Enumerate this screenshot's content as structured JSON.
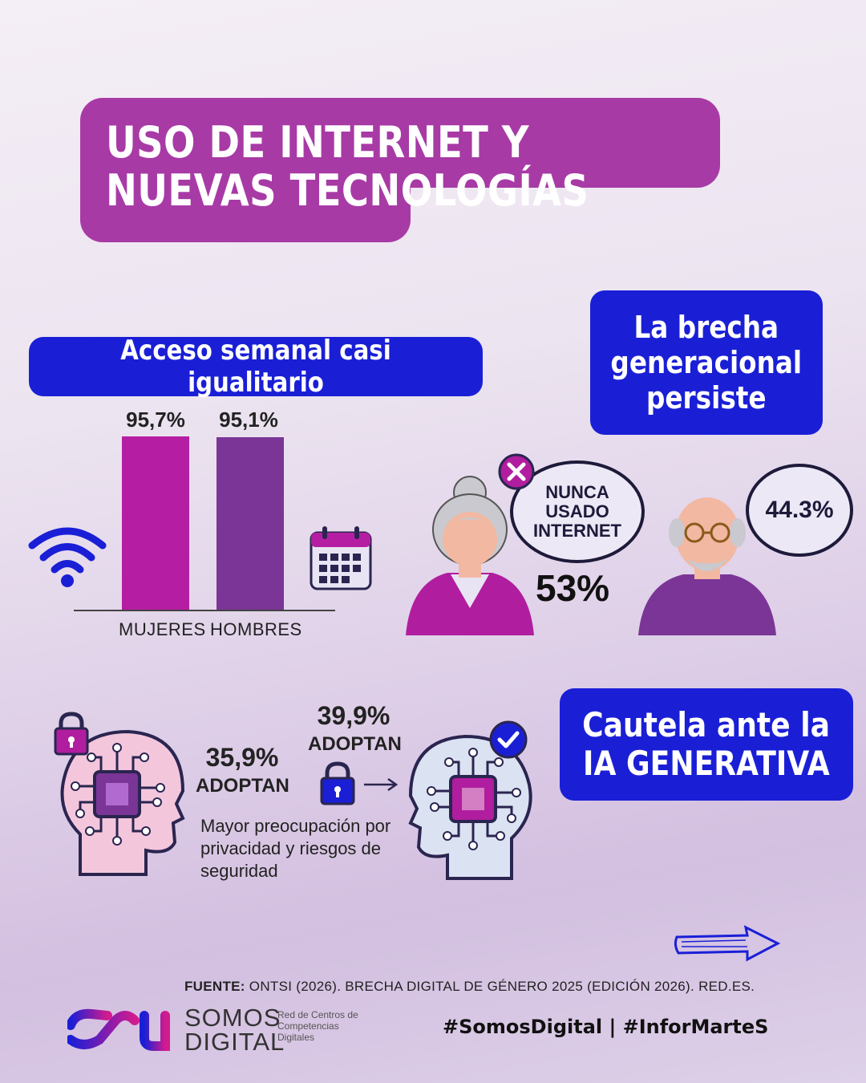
{
  "title": "USO DE INTERNET Y NUEVAS TECNOLOGÍAS",
  "section_access": {
    "heading": "Acceso semanal casi igualitario",
    "bars": [
      {
        "category": "MUJERES",
        "label": "95,7%",
        "value": 95.7,
        "color": "#b51ea3"
      },
      {
        "category": "HOMBRES",
        "label": "95,1%",
        "value": 95.1,
        "color": "#7a3596"
      }
    ],
    "icons": [
      "wifi-icon",
      "calendar-icon"
    ]
  },
  "section_generation": {
    "heading": "La brecha generacional persiste",
    "woman_bubble": "NUNCA USADO INTERNET",
    "woman_value": "53%",
    "man_value": "44.3%",
    "icons": [
      "close-icon"
    ]
  },
  "section_ai": {
    "heading_line1": "Cautela ante la",
    "heading_line2": "IA GENERATIVA",
    "women_value": "35,9%",
    "women_label": "ADOPTAN",
    "men_value": "39,9%",
    "men_label": "ADOPTAN",
    "note": "Mayor preocupación por privacidad y riesgos de seguridad",
    "icons": [
      "lock-icon",
      "check-icon",
      "arrow-right-icon"
    ]
  },
  "footer": {
    "source_label": "FUENTE:",
    "source_text": "ONTSI (2026). BRECHA DIGITAL DE GÉNERO 2025 (EDICIÓN 2026). RED.ES.",
    "brand_line1": "SOMOS",
    "brand_line2": "DIGITAL",
    "tagline": "Red de Centros de Competencias Digitales",
    "hashtags": "#SomosDigital | #InforMarteS"
  },
  "colors": {
    "magenta": "#a83aa6",
    "blue": "#1a1fd6",
    "purple": "#7a3596",
    "pink": "#b51ea3"
  }
}
